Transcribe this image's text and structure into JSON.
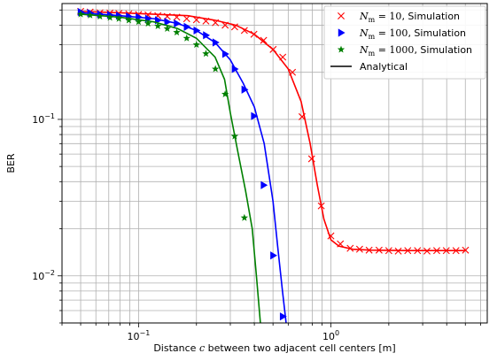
{
  "chart_data": {
    "type": "line",
    "xscale": "log",
    "yscale": "log",
    "xlim": [
      0.04,
      6.5
    ],
    "ylim": [
      0.005,
      0.55
    ],
    "grid": "both-major-and-minor",
    "xlabel_prefix": "Distance ",
    "xlabel_var": "c",
    "xlabel_suffix": " between two adjacent cell centers [m]",
    "ylabel": "BER",
    "xticks": [
      {
        "value": 0.1,
        "base": "10",
        "exp": "−1"
      },
      {
        "value": 1,
        "base": "10",
        "exp": "0"
      }
    ],
    "yticks": [
      {
        "value": 0.01,
        "base": "10",
        "exp": "−2"
      },
      {
        "value": 0.1,
        "base": "10",
        "exp": "−1"
      }
    ],
    "legend": {
      "placement": "top-right",
      "entries": [
        {
          "symbol": "N",
          "sub": "m",
          "eq": " = 10",
          "suffix": ", Simulation",
          "marker": "x",
          "color": "#ff0000"
        },
        {
          "symbol": "N",
          "sub": "m",
          "eq": " = 100",
          "suffix": ", Simulation",
          "marker": "triangle-right",
          "color": "#0000ff"
        },
        {
          "symbol": "N",
          "sub": "m",
          "eq": " = 1000",
          "suffix": ", Simulation",
          "marker": "star",
          "color": "#008000"
        },
        {
          "label": "Analytical",
          "marker": "line",
          "color": "#000000"
        }
      ]
    },
    "series": [
      {
        "key": "nm10",
        "color": "#ff0000",
        "marker": "x",
        "line": [
          [
            0.05,
            0.49
          ],
          [
            0.08,
            0.48
          ],
          [
            0.12,
            0.47
          ],
          [
            0.18,
            0.46
          ],
          [
            0.25,
            0.43
          ],
          [
            0.32,
            0.4
          ],
          [
            0.4,
            0.35
          ],
          [
            0.5,
            0.28
          ],
          [
            0.6,
            0.21
          ],
          [
            0.7,
            0.13
          ],
          [
            0.78,
            0.07
          ],
          [
            0.85,
            0.038
          ],
          [
            0.92,
            0.023
          ],
          [
            1.0,
            0.017
          ],
          [
            1.1,
            0.0155
          ],
          [
            1.3,
            0.0148
          ],
          [
            1.6,
            0.0146
          ],
          [
            2.5,
            0.0145
          ],
          [
            5.0,
            0.0145
          ]
        ],
        "points": [
          [
            0.05,
            0.49
          ],
          [
            0.056,
            0.485
          ],
          [
            0.063,
            0.48
          ],
          [
            0.071,
            0.478
          ],
          [
            0.079,
            0.475
          ],
          [
            0.089,
            0.472
          ],
          [
            0.1,
            0.468
          ],
          [
            0.112,
            0.465
          ],
          [
            0.126,
            0.46
          ],
          [
            0.141,
            0.455
          ],
          [
            0.158,
            0.45
          ],
          [
            0.178,
            0.44
          ],
          [
            0.2,
            0.433
          ],
          [
            0.224,
            0.425
          ],
          [
            0.251,
            0.415
          ],
          [
            0.282,
            0.4
          ],
          [
            0.316,
            0.39
          ],
          [
            0.355,
            0.37
          ],
          [
            0.398,
            0.35
          ],
          [
            0.447,
            0.32
          ],
          [
            0.501,
            0.28
          ],
          [
            0.562,
            0.25
          ],
          [
            0.631,
            0.2
          ],
          [
            0.708,
            0.104
          ],
          [
            0.794,
            0.056
          ],
          [
            0.891,
            0.028
          ],
          [
            1.0,
            0.018
          ],
          [
            1.12,
            0.016
          ],
          [
            1.26,
            0.015
          ],
          [
            1.41,
            0.0148
          ],
          [
            1.58,
            0.0146
          ],
          [
            1.78,
            0.0146
          ],
          [
            2.0,
            0.0145
          ],
          [
            2.24,
            0.0144
          ],
          [
            2.51,
            0.0145
          ],
          [
            2.82,
            0.0145
          ],
          [
            3.16,
            0.0144
          ],
          [
            3.55,
            0.0145
          ],
          [
            3.98,
            0.0145
          ],
          [
            4.47,
            0.0145
          ],
          [
            5.01,
            0.0146
          ]
        ]
      },
      {
        "key": "nm100",
        "color": "#0000ff",
        "marker": "triangle-right",
        "line": [
          [
            0.05,
            0.48
          ],
          [
            0.08,
            0.46
          ],
          [
            0.12,
            0.44
          ],
          [
            0.16,
            0.41
          ],
          [
            0.2,
            0.37
          ],
          [
            0.25,
            0.31
          ],
          [
            0.3,
            0.24
          ],
          [
            0.35,
            0.17
          ],
          [
            0.4,
            0.12
          ],
          [
            0.45,
            0.07
          ],
          [
            0.5,
            0.03
          ],
          [
            0.53,
            0.015
          ],
          [
            0.56,
            0.008
          ],
          [
            0.585,
            0.005
          ]
        ],
        "points": [
          [
            0.05,
            0.485
          ],
          [
            0.056,
            0.478
          ],
          [
            0.063,
            0.47
          ],
          [
            0.071,
            0.465
          ],
          [
            0.079,
            0.46
          ],
          [
            0.089,
            0.455
          ],
          [
            0.1,
            0.45
          ],
          [
            0.112,
            0.44
          ],
          [
            0.126,
            0.43
          ],
          [
            0.141,
            0.42
          ],
          [
            0.158,
            0.41
          ],
          [
            0.178,
            0.39
          ],
          [
            0.2,
            0.37
          ],
          [
            0.224,
            0.345
          ],
          [
            0.251,
            0.31
          ],
          [
            0.282,
            0.262
          ],
          [
            0.316,
            0.21
          ],
          [
            0.355,
            0.155
          ],
          [
            0.398,
            0.105
          ],
          [
            0.447,
            0.038
          ],
          [
            0.501,
            0.0135
          ],
          [
            0.562,
            0.0055
          ]
        ]
      },
      {
        "key": "nm1000",
        "color": "#008000",
        "marker": "star",
        "line": [
          [
            0.05,
            0.47
          ],
          [
            0.08,
            0.45
          ],
          [
            0.12,
            0.42
          ],
          [
            0.16,
            0.38
          ],
          [
            0.2,
            0.33
          ],
          [
            0.25,
            0.25
          ],
          [
            0.28,
            0.18
          ],
          [
            0.3,
            0.11
          ],
          [
            0.33,
            0.06
          ],
          [
            0.36,
            0.035
          ],
          [
            0.39,
            0.02
          ],
          [
            0.41,
            0.01
          ],
          [
            0.43,
            0.005
          ]
        ],
        "points": [
          [
            0.05,
            0.47
          ],
          [
            0.056,
            0.463
          ],
          [
            0.063,
            0.455
          ],
          [
            0.071,
            0.447
          ],
          [
            0.079,
            0.44
          ],
          [
            0.089,
            0.43
          ],
          [
            0.1,
            0.42
          ],
          [
            0.112,
            0.41
          ],
          [
            0.126,
            0.395
          ],
          [
            0.141,
            0.38
          ],
          [
            0.158,
            0.36
          ],
          [
            0.178,
            0.33
          ],
          [
            0.2,
            0.3
          ],
          [
            0.224,
            0.263
          ],
          [
            0.251,
            0.21
          ],
          [
            0.282,
            0.145
          ],
          [
            0.316,
            0.078
          ],
          [
            0.355,
            0.0235
          ],
          [
            0.398,
            0.0048
          ]
        ]
      }
    ]
  }
}
